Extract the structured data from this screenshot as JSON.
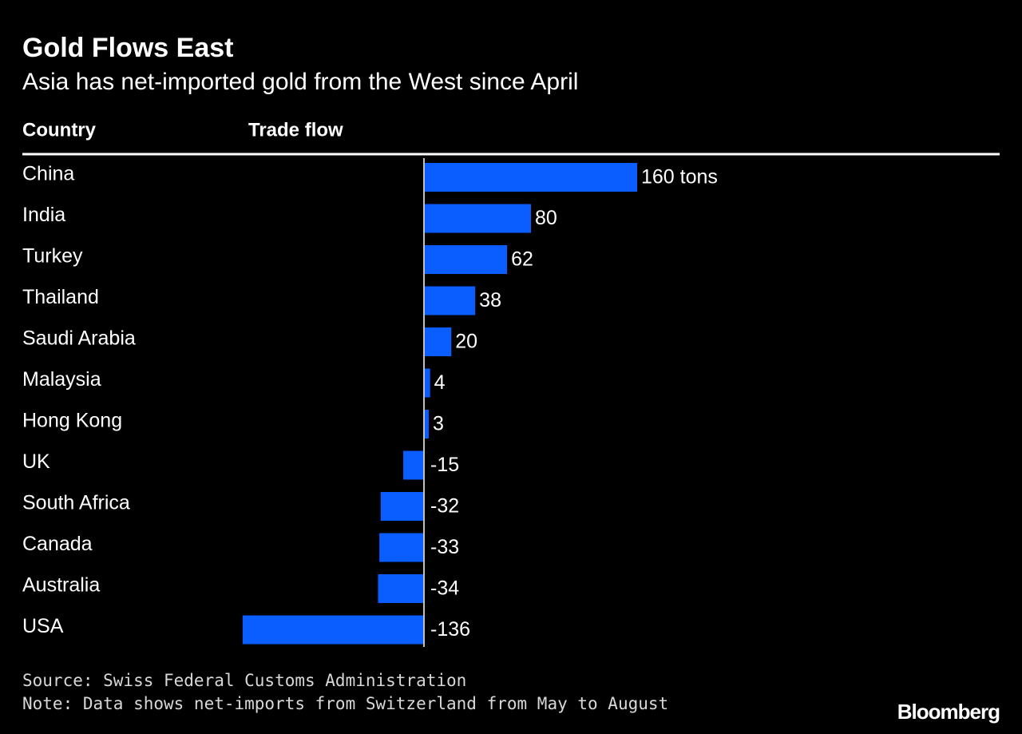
{
  "chart_data": {
    "type": "bar",
    "orientation": "horizontal",
    "title": "Gold Flows East",
    "subtitle": "Asia has net-imported gold from the West since April",
    "column_headers": [
      "Country",
      "Trade flow"
    ],
    "categories": [
      "China",
      "India",
      "Turkey",
      "Thailand",
      "Saudi Arabia",
      "Malaysia",
      "Hong Kong",
      "UK",
      "South Africa",
      "Canada",
      "Australia",
      "USA"
    ],
    "values": [
      160,
      80,
      62,
      38,
      20,
      4,
      3,
      -15,
      -32,
      -33,
      -34,
      -136
    ],
    "value_labels": [
      "160 tons",
      "80",
      "62",
      "38",
      "20",
      "4",
      "3",
      "-15",
      "-32",
      "-33",
      "-34",
      "-136"
    ],
    "color": "#0a5dff",
    "source": "Source: Swiss Federal Customs Administration",
    "note": "Note: Data shows net-imports from Switzerland from May to August",
    "brand": "Bloomberg"
  }
}
